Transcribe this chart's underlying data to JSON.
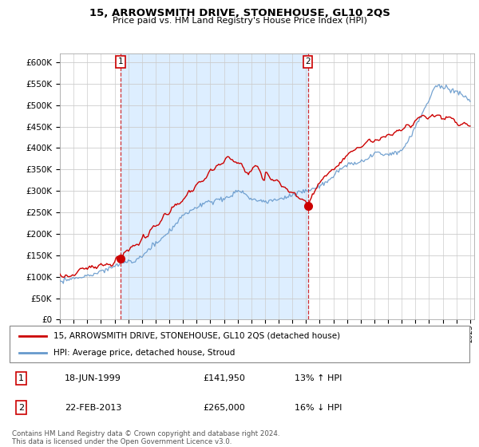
{
  "title": "15, ARROWSMITH DRIVE, STONEHOUSE, GL10 2QS",
  "subtitle": "Price paid vs. HM Land Registry's House Price Index (HPI)",
  "ylim": [
    0,
    620000
  ],
  "yticks": [
    0,
    50000,
    100000,
    150000,
    200000,
    250000,
    300000,
    350000,
    400000,
    450000,
    500000,
    550000,
    600000
  ],
  "price_paid_color": "#cc0000",
  "hpi_color": "#6699cc",
  "hpi_fill_color": "#ddeeff",
  "marker1_year": 1999.46,
  "marker1_price": 141950,
  "marker2_year": 2013.13,
  "marker2_price": 265000,
  "legend_label1": "15, ARROWSMITH DRIVE, STONEHOUSE, GL10 2QS (detached house)",
  "legend_label2": "HPI: Average price, detached house, Stroud",
  "footnote": "Contains HM Land Registry data © Crown copyright and database right 2024.\nThis data is licensed under the Open Government Licence v3.0.",
  "table_row1": [
    "1",
    "18-JUN-1999",
    "£141,950",
    "13% ↑ HPI"
  ],
  "table_row2": [
    "2",
    "22-FEB-2013",
    "£265,000",
    "16% ↓ HPI"
  ],
  "grid_color": "#cccccc",
  "background_color": "#ffffff"
}
